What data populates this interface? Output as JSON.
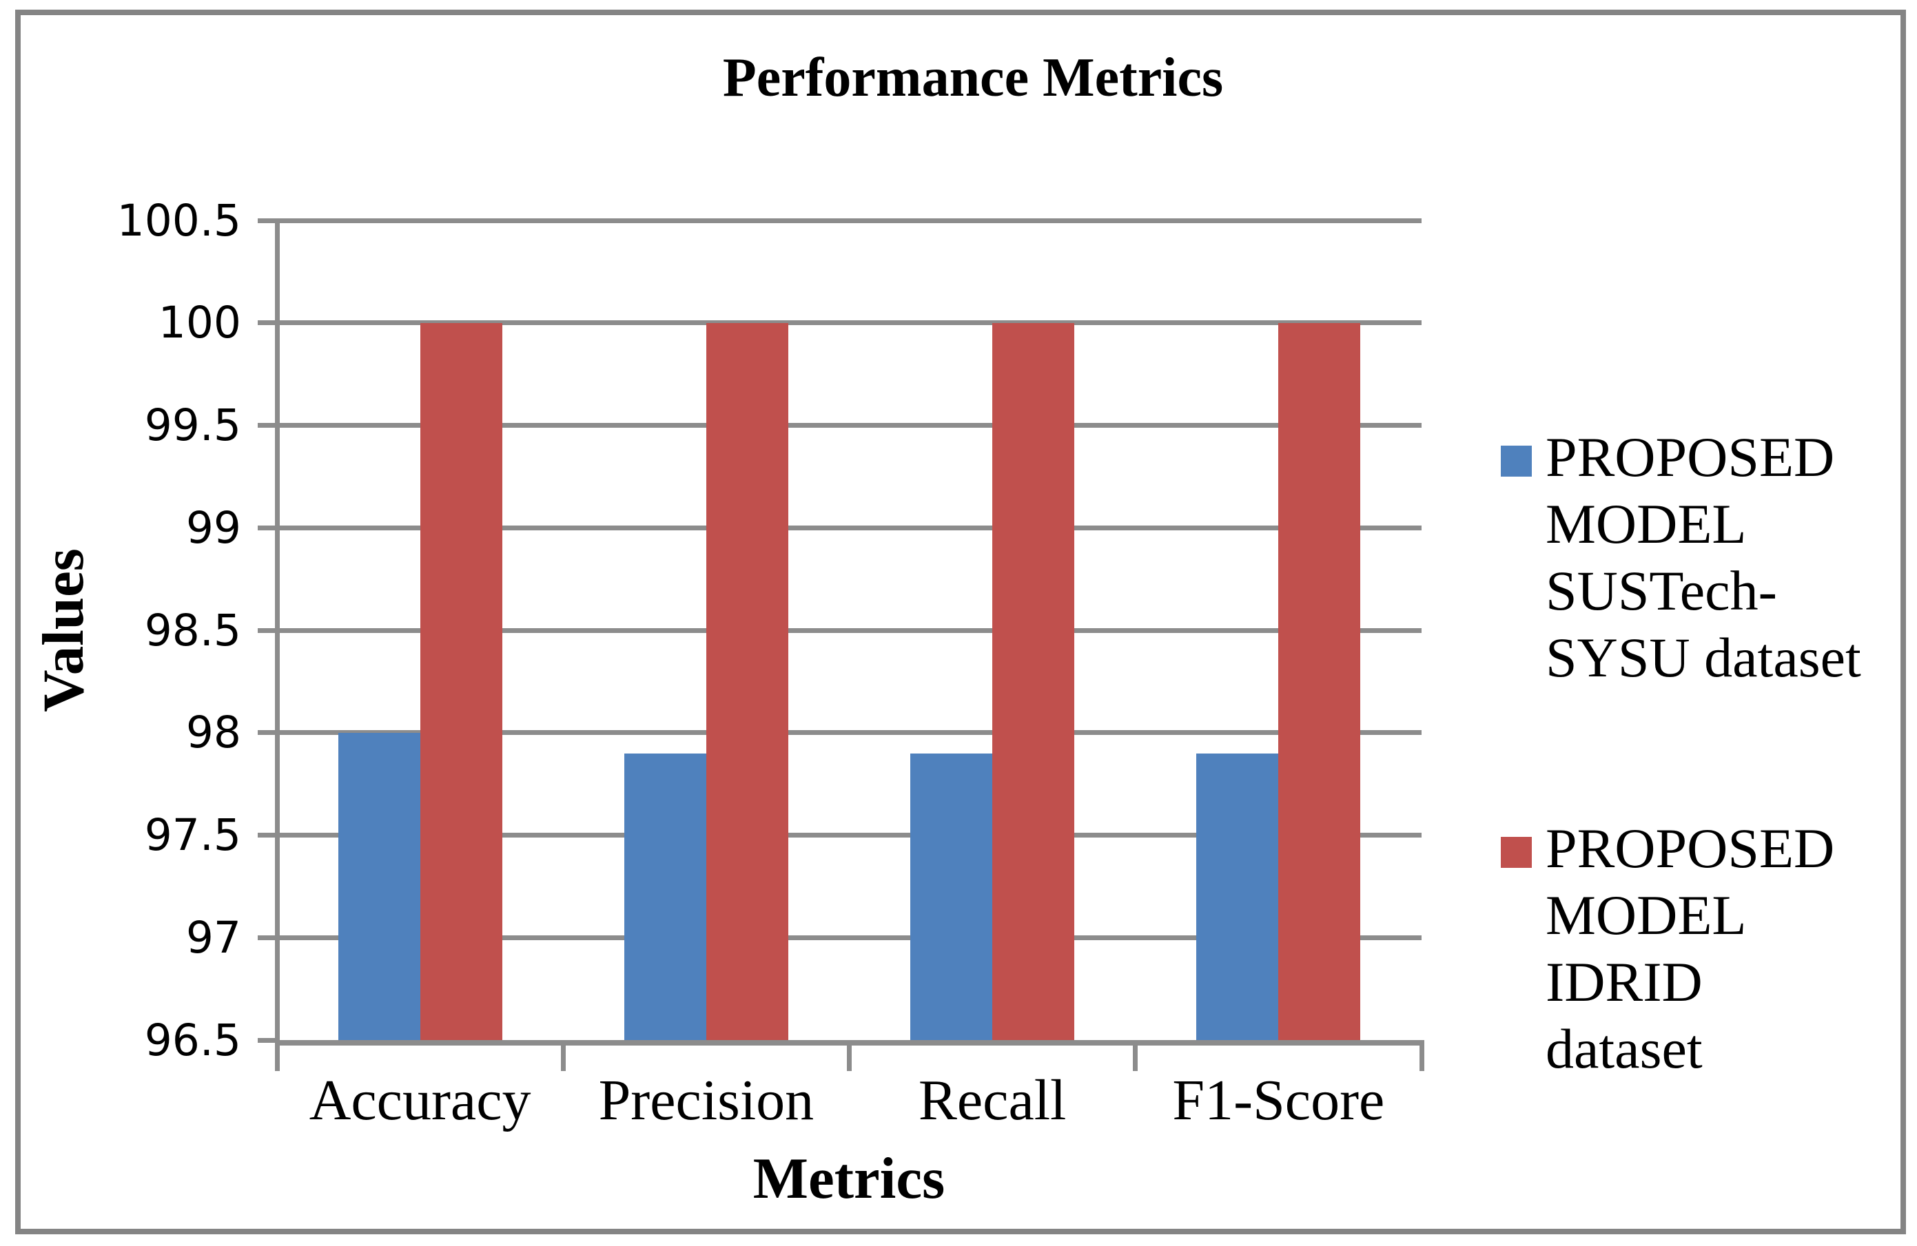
{
  "title": "Performance Metrics",
  "axes": {
    "x_title": "Metrics",
    "y_title": "Values",
    "y_tick_labels": [
      "100.5",
      "100",
      "99.5",
      "99",
      "98.5",
      "98",
      "97.5",
      "97",
      "96.5"
    ]
  },
  "chart_data": {
    "type": "bar",
    "title": "Performance Metrics",
    "xlabel": "Metrics",
    "ylabel": "Values",
    "categories": [
      "Accuracy",
      "Precision",
      "Recall",
      "F1-Score"
    ],
    "series": [
      {
        "name": "PROPOSED MODEL SUSTech-SYSU dataset",
        "color": "#4F81BD",
        "values": [
          98,
          97.9,
          97.9,
          97.9
        ]
      },
      {
        "name": "PROPOSED MODEL IDRID dataset",
        "color": "#C0504D",
        "values": [
          100,
          100,
          100,
          100
        ]
      }
    ],
    "ylim": [
      96.5,
      100.5
    ],
    "ytick_step": 0.5,
    "grid": true,
    "legend_position": "right"
  },
  "legend": {
    "entries": [
      {
        "label": "PROPOSED\nMODEL\nSUSTech-\nSYSU dataset",
        "color": "#4F81BD"
      },
      {
        "label": "PROPOSED\nMODEL\nIDRID\ndataset",
        "color": "#C0504D"
      }
    ]
  },
  "colors": {
    "series1": "#4F81BD",
    "series2": "#C0504D",
    "gridline": "#8C8C8C",
    "axis": "#8C8C8C",
    "border": "#848484",
    "background": "#FFFFFF",
    "text": "#000000"
  }
}
